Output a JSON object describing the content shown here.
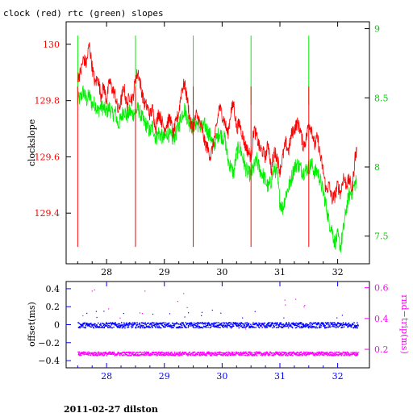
{
  "title": "clock (red) rtc (green) slopes",
  "footer": "2011-02-27 dilston",
  "colors": {
    "clock": "#ff0000",
    "rtc": "#00ee00",
    "offset": "#0000ff",
    "rndtrip": "#ff00ff",
    "axis": "#000000"
  },
  "chart_data": [
    {
      "type": "line",
      "title": "clock (red) rtc (green) slopes",
      "xlabel": "",
      "ylabel": "clockslope",
      "y2label": "",
      "xlim": [
        27.3,
        32.55
      ],
      "ylim": [
        129.22,
        130.08
      ],
      "y2lim": [
        7.3,
        9.05
      ],
      "xticks": [
        28,
        29,
        30,
        31,
        32
      ],
      "yticks": [
        129.4,
        129.6,
        129.8,
        130
      ],
      "ytick_labels": [
        "129.4",
        "129.6",
        "129.8",
        "130"
      ],
      "y2ticks": [
        7.5,
        8,
        8.5,
        9
      ],
      "y2tick_labels": [
        "7.5",
        "8",
        "8.5",
        "9"
      ],
      "series": [
        {
          "name": "clock",
          "color": "#ff0000",
          "axis": "left",
          "x": [
            27.5,
            27.55,
            27.6,
            27.65,
            27.7,
            27.75,
            27.8,
            27.85,
            27.9,
            27.95,
            28.0,
            28.05,
            28.1,
            28.15,
            28.2,
            28.25,
            28.3,
            28.35,
            28.4,
            28.45,
            28.5,
            28.55,
            28.6,
            28.65,
            28.7,
            28.75,
            28.8,
            28.85,
            28.9,
            28.95,
            29.0,
            29.05,
            29.1,
            29.15,
            29.2,
            29.25,
            29.3,
            29.35,
            29.4,
            29.45,
            29.5,
            29.55,
            29.6,
            29.65,
            29.7,
            29.75,
            29.8,
            29.85,
            29.9,
            29.95,
            30.0,
            30.05,
            30.1,
            30.15,
            30.2,
            30.25,
            30.3,
            30.35,
            30.4,
            30.45,
            30.5,
            30.55,
            30.6,
            30.65,
            30.7,
            30.75,
            30.8,
            30.85,
            30.9,
            30.95,
            31.0,
            31.05,
            31.1,
            31.15,
            31.2,
            31.25,
            31.3,
            31.35,
            31.4,
            31.45,
            31.5,
            31.55,
            31.6,
            31.65,
            31.7,
            31.75,
            31.8,
            31.85,
            31.9,
            31.95,
            32.0,
            32.05,
            32.1,
            32.15,
            32.2,
            32.25,
            32.3,
            32.33
          ],
          "values": [
            129.88,
            129.9,
            129.95,
            129.93,
            130.0,
            129.92,
            129.86,
            129.88,
            129.82,
            129.85,
            129.8,
            129.87,
            129.84,
            129.82,
            129.76,
            129.8,
            129.85,
            129.78,
            129.82,
            129.8,
            129.88,
            129.9,
            129.84,
            129.79,
            129.78,
            129.75,
            129.77,
            129.7,
            129.76,
            129.73,
            129.7,
            129.72,
            129.74,
            129.68,
            129.72,
            129.76,
            129.84,
            129.86,
            129.8,
            129.72,
            129.7,
            129.75,
            129.73,
            129.7,
            129.65,
            129.63,
            129.6,
            129.65,
            129.7,
            129.78,
            129.75,
            129.72,
            129.68,
            129.76,
            129.79,
            129.7,
            129.72,
            129.68,
            129.64,
            129.62,
            129.6,
            129.7,
            129.67,
            129.63,
            129.62,
            129.6,
            129.65,
            129.55,
            129.62,
            129.6,
            129.55,
            129.6,
            129.65,
            129.62,
            129.68,
            129.7,
            129.72,
            129.7,
            129.64,
            129.66,
            129.72,
            129.7,
            129.64,
            129.67,
            129.6,
            129.55,
            129.48,
            129.5,
            129.45,
            129.46,
            129.5,
            129.47,
            129.53,
            129.5,
            129.52,
            129.48,
            129.6,
            129.62
          ]
        },
        {
          "name": "rtc",
          "color": "#00ee00",
          "axis": "right",
          "x": [
            27.5,
            27.55,
            27.6,
            27.65,
            27.7,
            27.75,
            27.8,
            27.85,
            27.9,
            27.95,
            28.0,
            28.05,
            28.1,
            28.15,
            28.2,
            28.25,
            28.3,
            28.35,
            28.4,
            28.45,
            28.5,
            28.55,
            28.6,
            28.65,
            28.7,
            28.75,
            28.8,
            28.85,
            28.9,
            28.95,
            29.0,
            29.05,
            29.1,
            29.15,
            29.2,
            29.25,
            29.3,
            29.35,
            29.4,
            29.45,
            29.5,
            29.55,
            29.6,
            29.65,
            29.7,
            29.75,
            29.8,
            29.85,
            29.9,
            29.95,
            30.0,
            30.05,
            30.1,
            30.15,
            30.2,
            30.25,
            30.3,
            30.35,
            30.4,
            30.45,
            30.5,
            30.55,
            30.6,
            30.65,
            30.7,
            30.75,
            30.8,
            30.85,
            30.9,
            30.95,
            31.0,
            31.05,
            31.1,
            31.15,
            31.2,
            31.25,
            31.3,
            31.35,
            31.4,
            31.45,
            31.5,
            31.55,
            31.6,
            31.65,
            31.7,
            31.75,
            31.8,
            31.85,
            31.9,
            31.95,
            32.0,
            32.05,
            32.1,
            32.15,
            32.2,
            32.25,
            32.3,
            32.33
          ],
          "values": [
            8.48,
            8.5,
            8.55,
            8.48,
            8.52,
            8.45,
            8.46,
            8.4,
            8.44,
            8.42,
            8.4,
            8.43,
            8.38,
            8.4,
            8.3,
            8.35,
            8.42,
            8.36,
            8.4,
            8.38,
            8.4,
            8.42,
            8.37,
            8.32,
            8.3,
            8.25,
            8.3,
            8.2,
            8.25,
            8.22,
            8.2,
            8.25,
            8.22,
            8.2,
            8.24,
            8.3,
            8.38,
            8.42,
            8.35,
            8.3,
            8.3,
            8.32,
            8.3,
            8.28,
            8.3,
            8.26,
            8.22,
            8.15,
            8.2,
            8.25,
            8.22,
            8.2,
            8.05,
            8.0,
            7.95,
            8.1,
            8.15,
            8.08,
            8.0,
            7.95,
            7.95,
            8.0,
            8.05,
            7.98,
            7.95,
            7.9,
            7.85,
            7.9,
            8.0,
            7.95,
            7.75,
            7.7,
            7.8,
            7.85,
            7.92,
            8.0,
            8.02,
            8.0,
            7.96,
            7.98,
            8.0,
            8.02,
            7.96,
            7.97,
            7.9,
            7.82,
            7.72,
            7.6,
            7.55,
            7.45,
            7.5,
            7.42,
            7.55,
            7.7,
            7.8,
            7.82,
            7.88,
            7.9
          ]
        }
      ]
    },
    {
      "type": "scatter",
      "xlabel": "",
      "ylabel": "offset(ms)",
      "y2label": "rnd−trip(ms)",
      "xlim": [
        27.3,
        32.55
      ],
      "ylim": [
        -0.48,
        0.48
      ],
      "y2lim": [
        0.08,
        0.64
      ],
      "xticks": [
        28,
        29,
        30,
        31,
        32
      ],
      "yticks": [
        -0.4,
        -0.2,
        0,
        0.2,
        0.4
      ],
      "ytick_labels": [
        "−0.4",
        "−0.2",
        "0",
        "0.2",
        "0.4"
      ],
      "y2ticks": [
        0.2,
        0.4,
        0.6
      ],
      "y2tick_labels": [
        "0.2",
        "0.4",
        "0.6"
      ],
      "series": [
        {
          "name": "offset",
          "color": "#0000ff",
          "axis": "left",
          "x_range": [
            27.5,
            32.35
          ],
          "center": 0.0,
          "spread": 0.03
        },
        {
          "name": "rnd-trip",
          "color": "#ff00ff",
          "axis": "right",
          "x_range": [
            27.5,
            32.35
          ],
          "center": 0.175,
          "spread": 0.012
        }
      ]
    }
  ]
}
